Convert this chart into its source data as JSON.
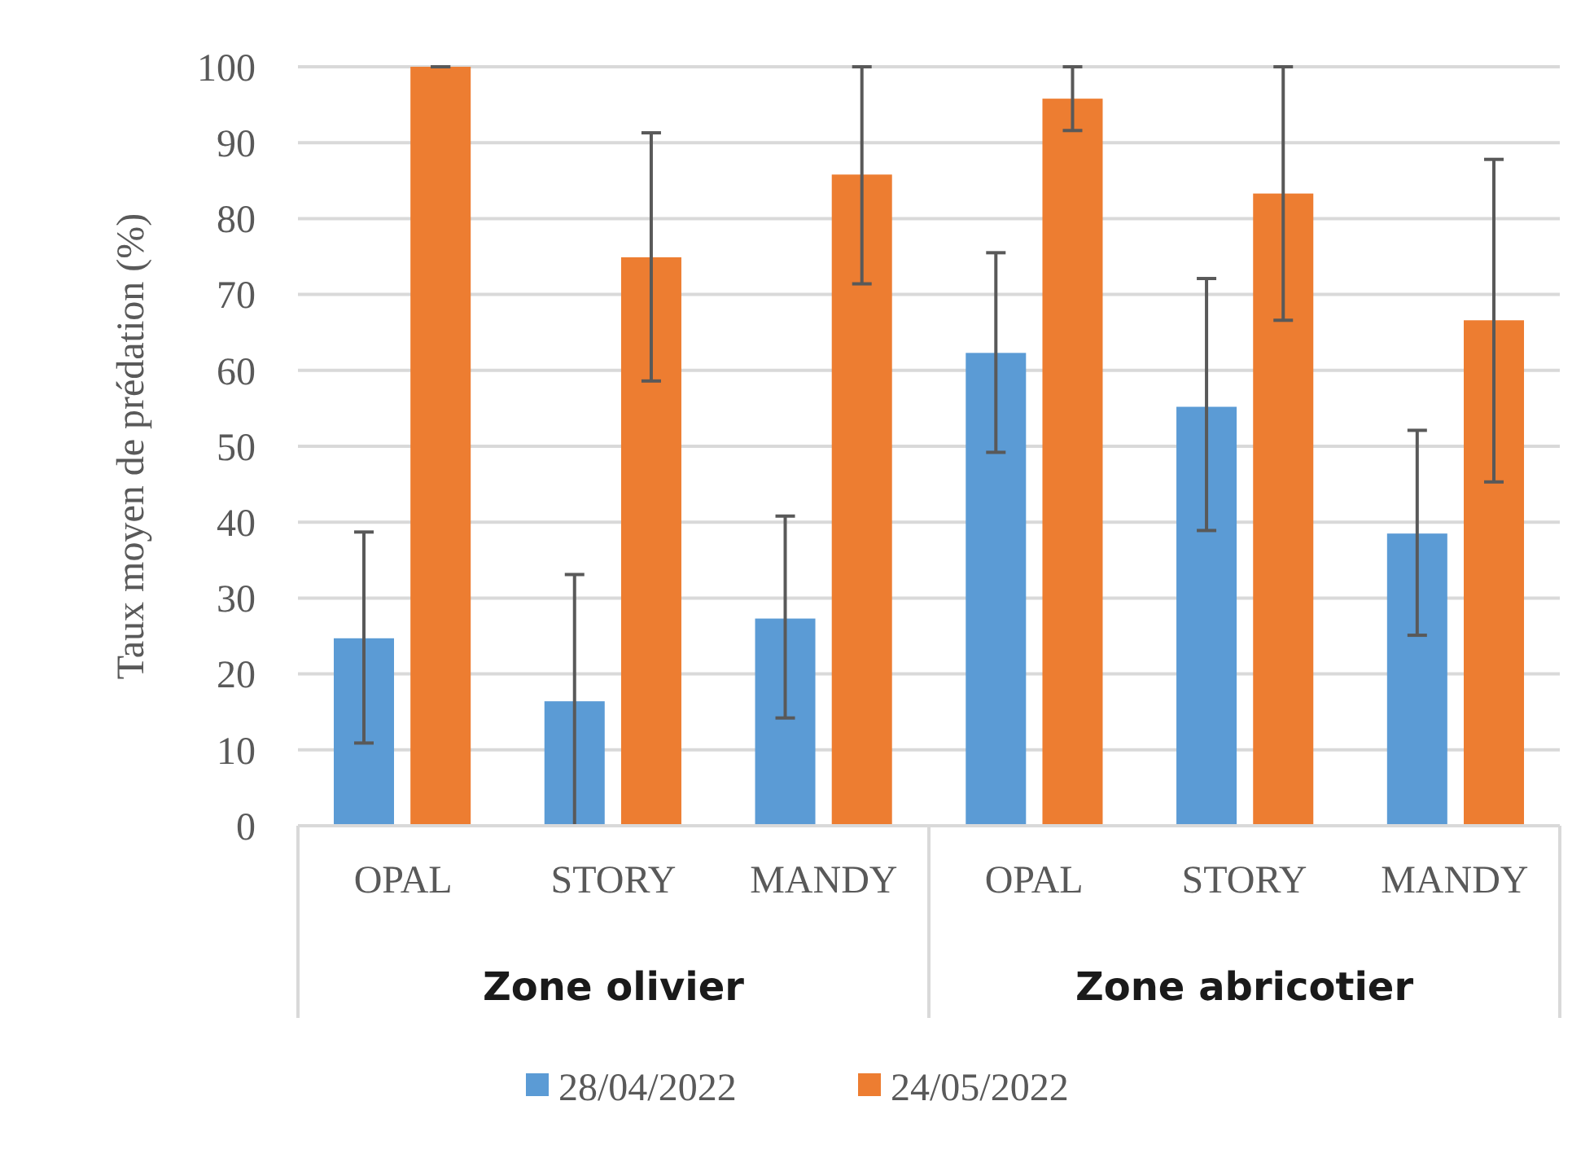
{
  "chart_data": {
    "type": "bar",
    "ylabel": "Taux moyen de prédation (%)",
    "categories": [
      "OPAL",
      "STORY",
      "MANDY",
      "OPAL",
      "STORY",
      "MANDY"
    ],
    "series": [
      {
        "name": "28/04/2022",
        "color": "#5b9bd5",
        "values": [
          24.7,
          16.4,
          27.3,
          62.3,
          55.2,
          38.5
        ],
        "errors": [
          [
            10.9,
            38.7
          ],
          [
            0,
            33.1
          ],
          [
            14.2,
            40.8
          ],
          [
            49.2,
            75.5
          ],
          [
            38.9,
            72.1
          ],
          [
            25.1,
            52.1
          ]
        ]
      },
      {
        "name": "24/05/2022",
        "color": "#ed7d31",
        "values": [
          100,
          74.9,
          85.8,
          95.8,
          83.3,
          66.6
        ],
        "errors": [
          [
            100,
            100
          ],
          [
            58.6,
            91.3
          ],
          [
            71.4,
            100
          ],
          [
            91.6,
            100
          ],
          [
            66.6,
            100
          ],
          [
            45.3,
            87.8
          ]
        ]
      }
    ],
    "annotations": [
      "Zone olivier",
      "Zone abricotier"
    ],
    "ylim": [
      0,
      100
    ],
    "yticks": [
      0,
      10,
      20,
      30,
      40,
      50,
      60,
      70,
      80,
      90,
      100
    ],
    "grid": "y",
    "legend": "bottom"
  }
}
